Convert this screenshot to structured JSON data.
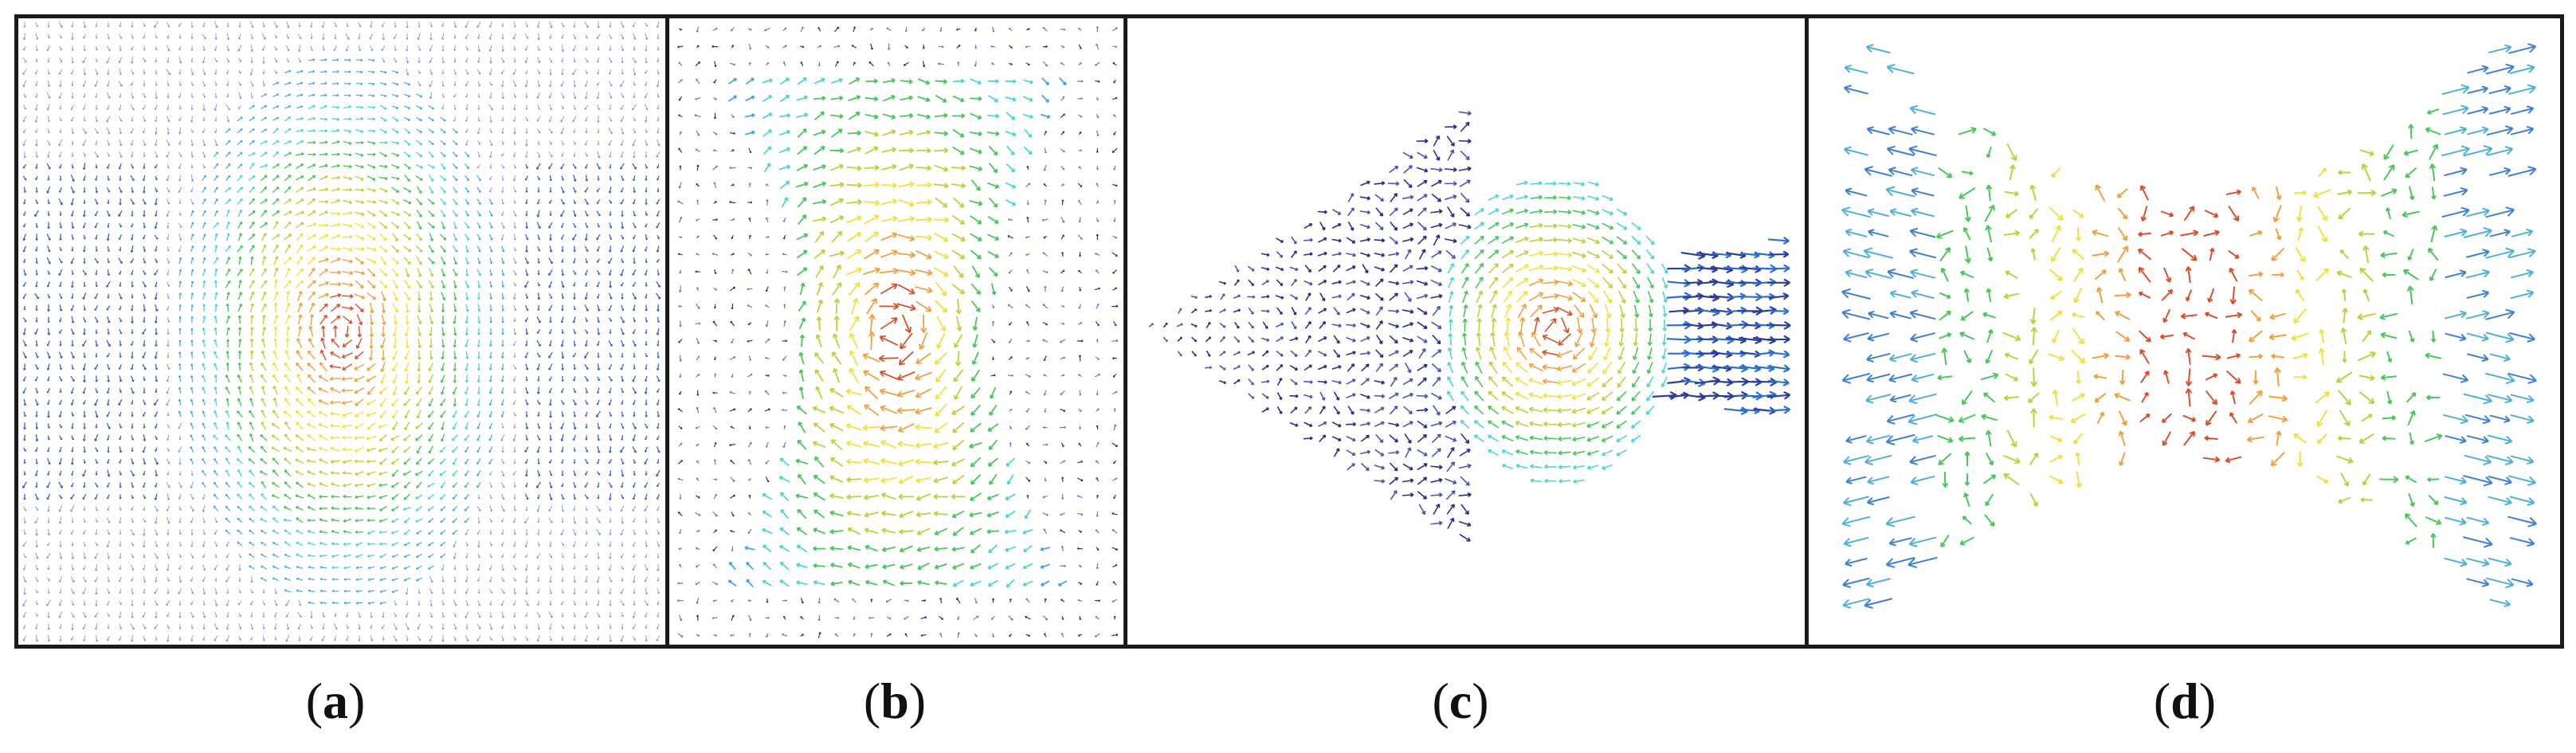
{
  "panels": [
    {
      "id": "a",
      "label": "a",
      "pattern": "ellipse-vortex"
    },
    {
      "id": "b",
      "label": "b",
      "pattern": "hourglass-vortex"
    },
    {
      "id": "c",
      "label": "c",
      "pattern": "arrowhead-vortex-jet"
    },
    {
      "id": "d",
      "label": "d",
      "pattern": "bowtie-sparse-arrows"
    }
  ],
  "colors": {
    "frame": "#1a1a1a",
    "colormap": [
      "#2b2d8f",
      "#3f5fd6",
      "#3fa7e8",
      "#4fd6d0",
      "#49c75a",
      "#b8d43c",
      "#f0e040",
      "#f0a040",
      "#d8502a"
    ]
  }
}
